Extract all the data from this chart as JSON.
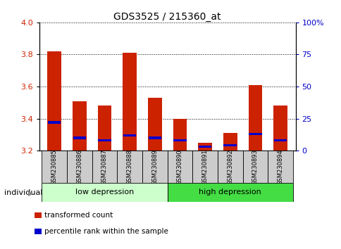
{
  "title": "GDS3525 / 215360_at",
  "samples": [
    "GSM230885",
    "GSM230886",
    "GSM230887",
    "GSM230888",
    "GSM230889",
    "GSM230890",
    "GSM230891",
    "GSM230892",
    "GSM230893",
    "GSM230894"
  ],
  "transformed_count": [
    3.82,
    3.51,
    3.48,
    3.81,
    3.53,
    3.4,
    3.25,
    3.31,
    3.61,
    3.48
  ],
  "percentile_rank": [
    22,
    10,
    8,
    12,
    10,
    8,
    3,
    4,
    13,
    8
  ],
  "ymin": 3.2,
  "ymax": 4.0,
  "yticks": [
    3.2,
    3.4,
    3.6,
    3.8,
    4.0
  ],
  "right_yticks": [
    0,
    25,
    50,
    75,
    100
  ],
  "right_ytick_labels": [
    "0",
    "25",
    "50",
    "75",
    "100%"
  ],
  "groups": [
    {
      "label": "low depression",
      "start": 0,
      "end": 5,
      "color": "#ccffcc"
    },
    {
      "label": "high depression",
      "start": 5,
      "end": 10,
      "color": "#44dd44"
    }
  ],
  "bar_color": "#cc2200",
  "percentile_color": "#0000cc",
  "bar_width": 0.55,
  "plot_bg_color": "#ffffff",
  "grid_color": "#000000",
  "tick_label_color_left": "#cc2200",
  "tick_label_color_right": "#0000cc",
  "legend_items": [
    "transformed count",
    "percentile rank within the sample"
  ],
  "legend_colors": [
    "#cc2200",
    "#0000cc"
  ],
  "individual_label": "individual",
  "sample_bg_color": "#cccccc"
}
